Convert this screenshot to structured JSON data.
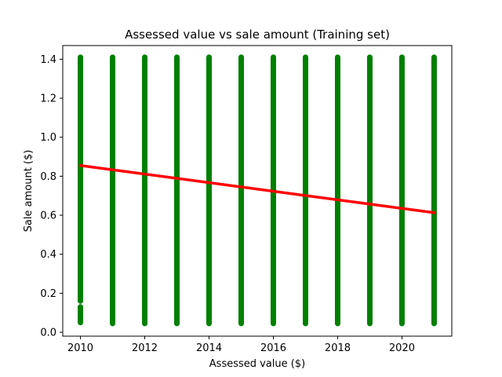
{
  "chart_data": {
    "type": "scatter",
    "title": "Assessed value vs sale amount (Training set)",
    "xlabel": "Assessed value ($)",
    "ylabel": "Sale amount ($)",
    "xlim": [
      2009.45,
      2021.55
    ],
    "ylim": [
      -0.02,
      1.47
    ],
    "xticks": [
      2010,
      2012,
      2014,
      2016,
      2018,
      2020
    ],
    "yticks": [
      0.0,
      0.2,
      0.4,
      0.6,
      0.8,
      1.0,
      1.2,
      1.4
    ],
    "xtick_labels": [
      "2010",
      "2012",
      "2014",
      "2016",
      "2018",
      "2020"
    ],
    "ytick_labels": [
      "0.0",
      "0.2",
      "0.4",
      "0.6",
      "0.8",
      "1.0",
      "1.2",
      "1.4"
    ],
    "grid": false,
    "scatter": {
      "color": "#008000",
      "columns": [
        {
          "x": 2010,
          "segments": [
            [
              0.05,
              0.08
            ],
            [
              0.09,
              0.13
            ],
            [
              0.16,
              1.41
            ]
          ]
        },
        {
          "x": 2011,
          "segments": [
            [
              0.045,
              1.41
            ]
          ]
        },
        {
          "x": 2012,
          "segments": [
            [
              0.045,
              1.41
            ]
          ]
        },
        {
          "x": 2013,
          "segments": [
            [
              0.045,
              1.41
            ]
          ]
        },
        {
          "x": 2014,
          "segments": [
            [
              0.045,
              1.41
            ]
          ]
        },
        {
          "x": 2015,
          "segments": [
            [
              0.045,
              1.41
            ]
          ]
        },
        {
          "x": 2016,
          "segments": [
            [
              0.045,
              1.41
            ]
          ]
        },
        {
          "x": 2017,
          "segments": [
            [
              0.045,
              1.41
            ]
          ]
        },
        {
          "x": 2018,
          "segments": [
            [
              0.045,
              1.41
            ]
          ]
        },
        {
          "x": 2019,
          "segments": [
            [
              0.045,
              1.41
            ]
          ]
        },
        {
          "x": 2020,
          "segments": [
            [
              0.045,
              1.41
            ]
          ]
        },
        {
          "x": 2021,
          "segments": [
            [
              0.045,
              1.41
            ]
          ]
        }
      ]
    },
    "line": {
      "color": "#ff0000",
      "x": [
        2010,
        2021
      ],
      "y": [
        0.855,
        0.613
      ]
    }
  }
}
